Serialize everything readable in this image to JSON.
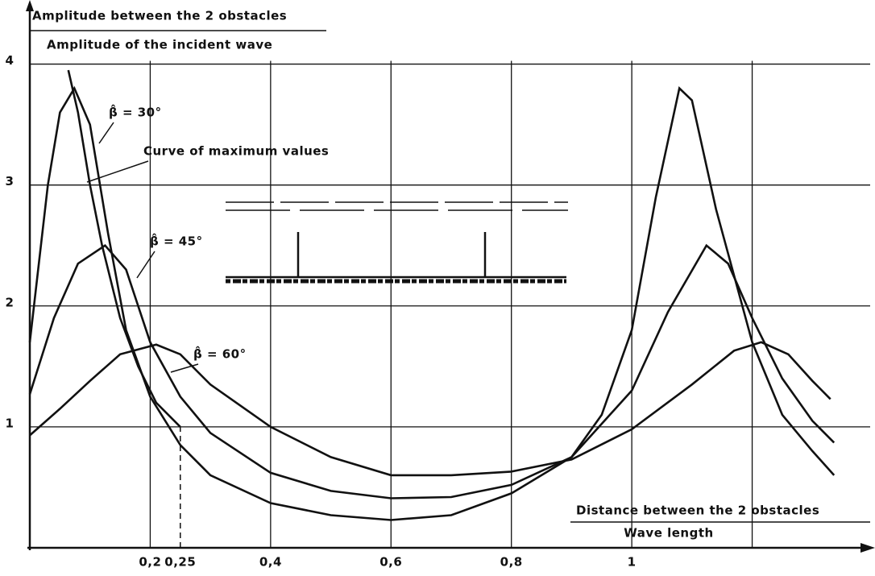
{
  "chart_data": {
    "type": "line",
    "y_label_top": "Amplitude between the 2 obstacles",
    "y_label_bottom": "Amplitude of the incident wave",
    "x_label_top": "Distance between the 2 obstacles",
    "x_label_bottom": "Wave length",
    "xlim": [
      0,
      1.396
    ],
    "ylim": [
      0,
      4.45
    ],
    "xticks": [
      {
        "value": 0.2,
        "label": "0,2"
      },
      {
        "value": 0.25,
        "label": "0,25"
      },
      {
        "value": 0.4,
        "label": "0,4"
      },
      {
        "value": 0.6,
        "label": "0,6"
      },
      {
        "value": 0.8,
        "label": "0,8"
      },
      1
    ],
    "xgrid": [
      0.2,
      0.4,
      0.6,
      0.8,
      1,
      1.2
    ],
    "yticks": [
      1,
      2,
      3,
      4
    ],
    "grid": true,
    "series": [
      {
        "name": "β̂ = 30°",
        "color": "#111111",
        "x": [
          0,
          0.03,
          0.05,
          0.074,
          0.1,
          0.13,
          0.16,
          0.2,
          0.25,
          0.3,
          0.4,
          0.5,
          0.6,
          0.7,
          0.8,
          0.9,
          0.95,
          1.0,
          1.04,
          1.079,
          1.1,
          1.14,
          1.2,
          1.25,
          1.3,
          1.336
        ],
        "values": [
          1.7,
          3.0,
          3.6,
          3.8,
          3.5,
          2.6,
          1.8,
          1.25,
          0.85,
          0.6,
          0.37,
          0.27,
          0.23,
          0.27,
          0.45,
          0.75,
          1.1,
          1.8,
          2.9,
          3.8,
          3.7,
          2.8,
          1.7,
          1.1,
          0.8,
          0.6
        ]
      },
      {
        "name": "Curve of maximum values",
        "color": "#111111",
        "x": [
          0.064,
          0.08,
          0.1,
          0.12,
          0.15,
          0.18,
          0.21,
          0.25
        ],
        "values": [
          3.95,
          3.6,
          3.0,
          2.5,
          1.9,
          1.5,
          1.2,
          1.0
        ]
      },
      {
        "name": "β̂ = 45°",
        "color": "#111111",
        "x": [
          0,
          0.04,
          0.08,
          0.125,
          0.16,
          0.2,
          0.25,
          0.3,
          0.4,
          0.5,
          0.6,
          0.7,
          0.8,
          0.9,
          1.0,
          1.06,
          1.124,
          1.16,
          1.2,
          1.25,
          1.3,
          1.336
        ],
        "values": [
          1.27,
          1.9,
          2.35,
          2.5,
          2.3,
          1.7,
          1.25,
          0.95,
          0.62,
          0.47,
          0.41,
          0.42,
          0.52,
          0.75,
          1.3,
          1.95,
          2.5,
          2.35,
          1.9,
          1.4,
          1.05,
          0.87
        ]
      },
      {
        "name": "β̂ = 60°",
        "color": "#111111",
        "x": [
          0,
          0.05,
          0.1,
          0.15,
          0.21,
          0.25,
          0.3,
          0.4,
          0.5,
          0.6,
          0.7,
          0.8,
          0.9,
          1.0,
          1.1,
          1.17,
          1.215,
          1.26,
          1.3,
          1.33
        ],
        "values": [
          0.93,
          1.15,
          1.38,
          1.6,
          1.68,
          1.6,
          1.35,
          1.0,
          0.75,
          0.6,
          0.6,
          0.63,
          0.73,
          0.98,
          1.35,
          1.63,
          1.7,
          1.6,
          1.38,
          1.23
        ]
      }
    ]
  }
}
